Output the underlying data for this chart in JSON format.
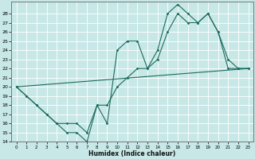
{
  "title": "",
  "xlabel": "Humidex (Indice chaleur)",
  "bg_color": "#c8e8e8",
  "line_color": "#1a6b5a",
  "grid_color": "#ffffff",
  "xlim": [
    -0.5,
    23.5
  ],
  "ylim": [
    14,
    29
  ],
  "yticks": [
    14,
    15,
    16,
    17,
    18,
    19,
    20,
    21,
    22,
    23,
    24,
    25,
    26,
    27,
    28
  ],
  "xticks": [
    0,
    1,
    2,
    3,
    4,
    5,
    6,
    7,
    8,
    9,
    10,
    11,
    12,
    13,
    14,
    15,
    16,
    17,
    18,
    19,
    20,
    21,
    22,
    23
  ],
  "line1": {
    "x": [
      0,
      1,
      2,
      3,
      4,
      5,
      6,
      7,
      8,
      9,
      10,
      11,
      12,
      13,
      14,
      15,
      16,
      17,
      18,
      19,
      20,
      21,
      22,
      23
    ],
    "y": [
      20,
      19,
      18,
      17,
      16,
      15,
      15,
      14,
      18,
      16,
      24,
      25,
      25,
      22,
      24,
      28,
      29,
      28,
      27,
      28,
      26,
      22,
      22,
      22
    ]
  },
  "line2": {
    "x": [
      0,
      1,
      2,
      3,
      4,
      5,
      6,
      7,
      8,
      9,
      10,
      11,
      12,
      13,
      14,
      15,
      16,
      17,
      18,
      19,
      20,
      21,
      22,
      23
    ],
    "y": [
      20,
      19,
      18,
      17,
      16,
      16,
      16,
      15,
      18,
      18,
      20,
      21,
      22,
      22,
      23,
      26,
      28,
      27,
      27,
      28,
      26,
      23,
      22,
      22
    ]
  },
  "line3": {
    "x": [
      0,
      23
    ],
    "y": [
      20,
      22
    ]
  }
}
